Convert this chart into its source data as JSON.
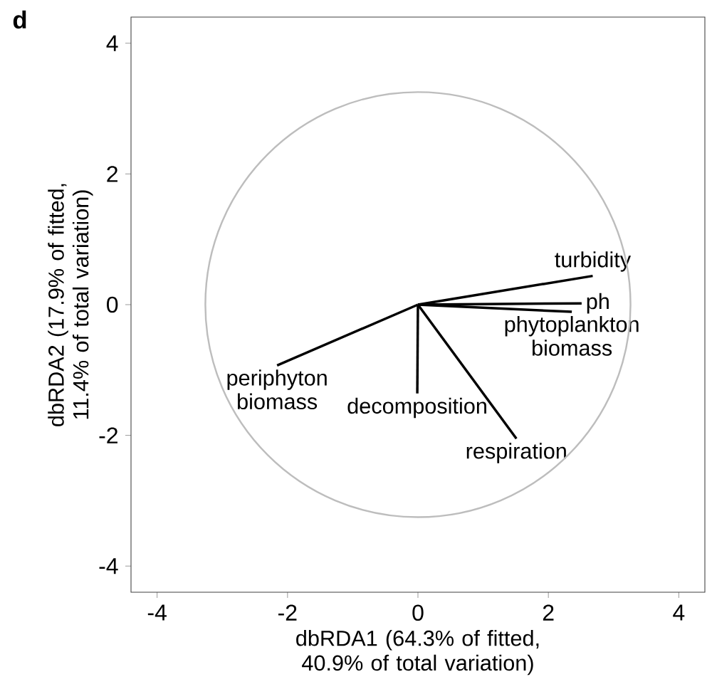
{
  "chart_data": {
    "type": "line",
    "xlabel": "dbRDA1 (64.3% of fitted, 40.9% of total variation)",
    "ylabel": "dbRDA2 (17.9% of fitted, 11.4% of total variation)",
    "annotations": [
      "d"
    ],
    "xlim": [
      -4.4,
      4.4
    ],
    "ylim": [
      -4.4,
      4.4
    ],
    "xticks": [
      -4,
      -2,
      0,
      2,
      4
    ],
    "yticks": [
      -4,
      -2,
      0,
      2,
      4
    ],
    "grid": false,
    "marker": "none",
    "line_style": "solid",
    "series": [
      {
        "name": "turbidity",
        "color": "#000000",
        "x": [
          0,
          2.68
        ],
        "values": [
          0,
          0.44
        ]
      },
      {
        "name": "ph",
        "color": "#000000",
        "x": [
          0,
          2.51
        ],
        "values": [
          0,
          0.02
        ]
      },
      {
        "name": "phytoplankton biomass",
        "color": "#000000",
        "x": [
          0,
          2.36
        ],
        "values": [
          0,
          -0.11
        ]
      },
      {
        "name": "periphyton biomass",
        "color": "#000000",
        "x": [
          0,
          -2.16
        ],
        "values": [
          0,
          -0.93
        ]
      },
      {
        "name": "decomposition",
        "color": "#000000",
        "x": [
          0,
          -0.01
        ],
        "values": [
          0,
          -1.36
        ]
      },
      {
        "name": "respiration",
        "color": "#000000",
        "x": [
          0,
          1.51
        ],
        "values": [
          0,
          -2.05
        ]
      }
    ]
  }
}
